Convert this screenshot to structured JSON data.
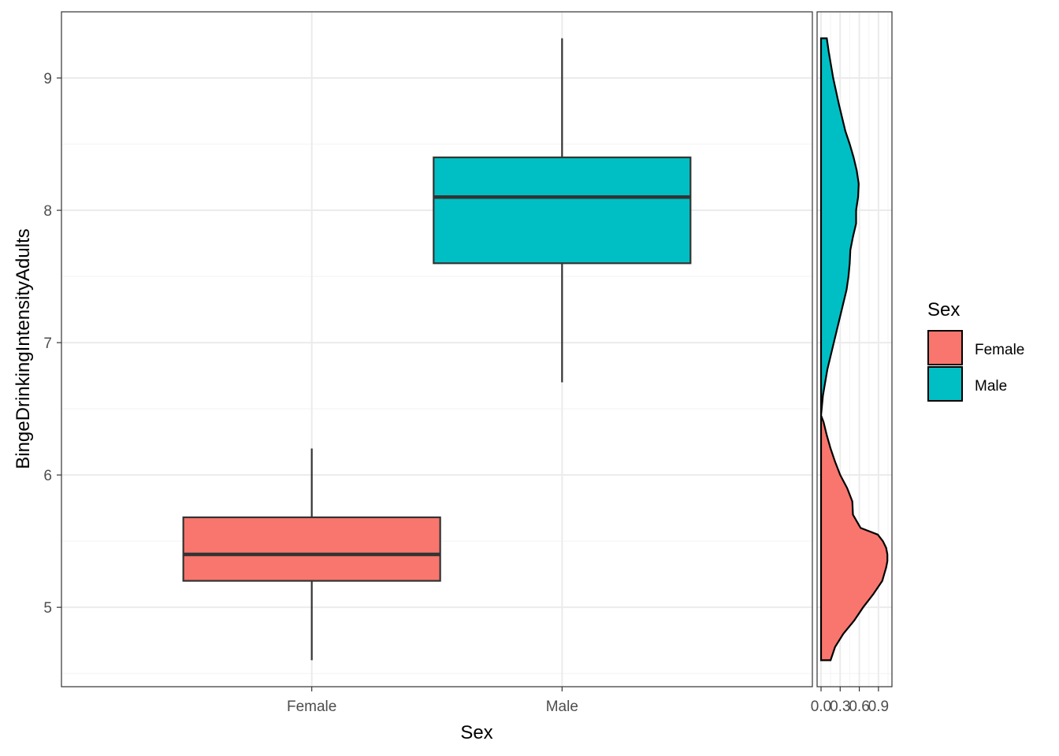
{
  "chart_data": {
    "type": "boxplot",
    "xlabel": "Sex",
    "ylabel": "BingeDrinkingIntensityAdults",
    "ylim": [
      4.4,
      9.5
    ],
    "yticks": [
      5,
      6,
      7,
      8,
      9
    ],
    "ytick_labels": [
      "5",
      "6",
      "7",
      "8",
      "9"
    ],
    "categories": [
      "Female",
      "Male"
    ],
    "boxes": [
      {
        "name": "Female",
        "min": 4.6,
        "q1": 5.2,
        "median": 5.4,
        "q3": 5.68,
        "max": 6.2,
        "color": "#F8766D"
      },
      {
        "name": "Male",
        "min": 6.7,
        "q1": 7.6,
        "median": 8.1,
        "q3": 8.4,
        "max": 9.3,
        "color": "#00BFC4"
      }
    ],
    "marginal_density": {
      "type": "area",
      "xlim": [
        0,
        1.05
      ],
      "xticks": [
        0,
        0.3,
        0.6,
        0.9
      ],
      "xtick_labels": [
        "0.0",
        "0.3",
        "0.6",
        "0.9"
      ],
      "series": [
        {
          "name": "Female",
          "color": "#F8766D",
          "y": [
            4.6,
            4.7,
            4.8,
            4.9,
            5.0,
            5.1,
            5.2,
            5.3,
            5.35,
            5.4,
            5.45,
            5.5,
            5.55,
            5.6,
            5.7,
            5.8,
            5.9,
            6.0,
            6.1,
            6.2,
            6.3,
            6.4,
            6.45
          ],
          "density": [
            0.15,
            0.22,
            0.35,
            0.52,
            0.66,
            0.82,
            0.96,
            1.02,
            1.04,
            1.04,
            1.02,
            0.97,
            0.89,
            0.62,
            0.5,
            0.49,
            0.41,
            0.3,
            0.22,
            0.15,
            0.09,
            0.04,
            0.0
          ]
        },
        {
          "name": "Male",
          "color": "#00BFC4",
          "y": [
            6.45,
            6.6,
            6.8,
            7.0,
            7.2,
            7.4,
            7.5,
            7.6,
            7.7,
            7.8,
            7.9,
            8.0,
            8.1,
            8.2,
            8.3,
            8.4,
            8.5,
            8.6,
            8.8,
            9.0,
            9.2,
            9.3
          ],
          "density": [
            0.0,
            0.03,
            0.1,
            0.2,
            0.3,
            0.4,
            0.43,
            0.45,
            0.46,
            0.5,
            0.55,
            0.55,
            0.58,
            0.59,
            0.56,
            0.51,
            0.45,
            0.38,
            0.28,
            0.19,
            0.12,
            0.09
          ]
        }
      ]
    },
    "legend": {
      "title": "Sex",
      "position": "right",
      "entries": [
        {
          "label": "Female",
          "color": "#F8766D"
        },
        {
          "label": "Male",
          "color": "#00BFC4"
        }
      ]
    }
  }
}
